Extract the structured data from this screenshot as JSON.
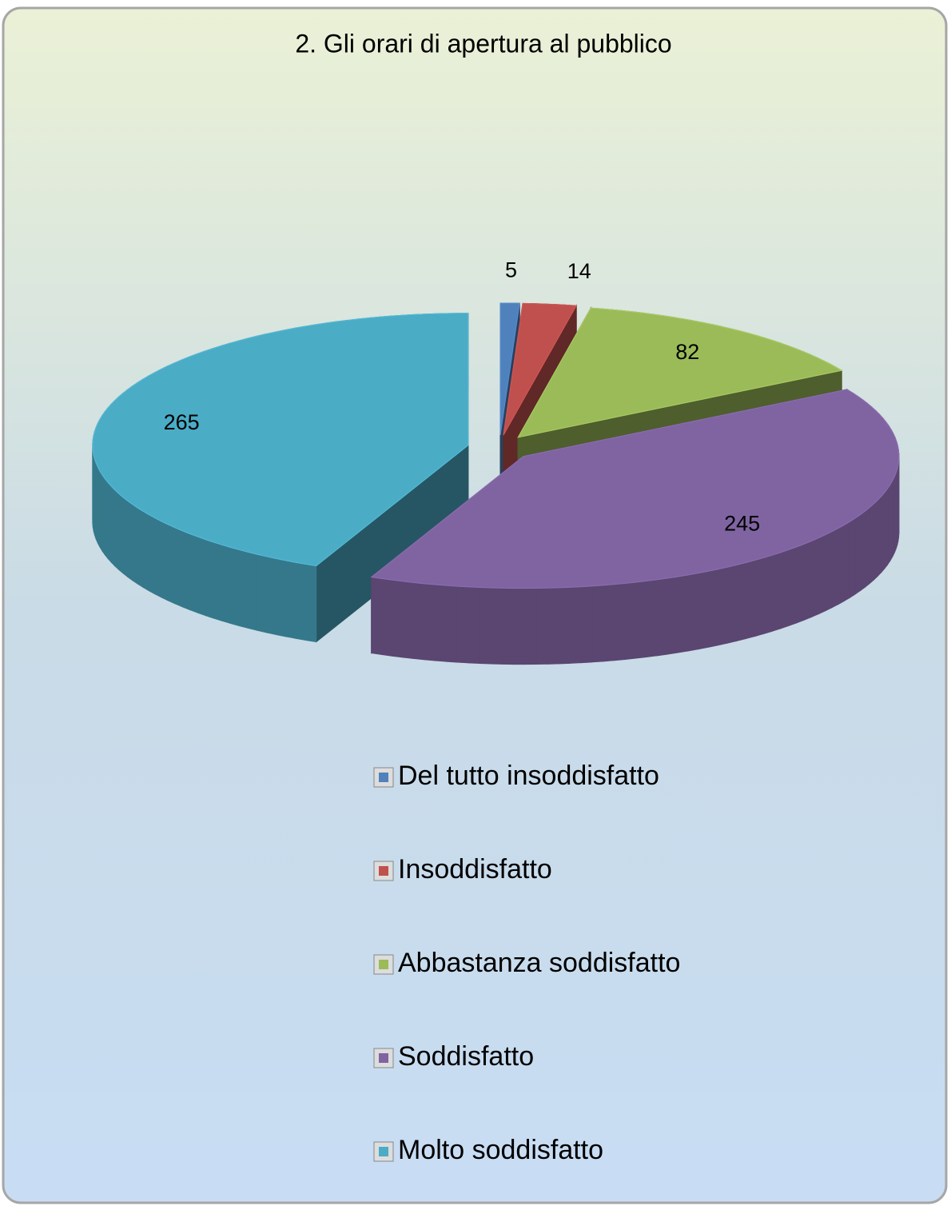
{
  "chart_data": {
    "type": "pie3d",
    "title": "2. Gli orari di apertura al pubblico",
    "categories": [
      "Del tutto insoddisfatto",
      "Insoddisfatto",
      "Abbastanza soddisfatto",
      "Soddisfatto",
      "Molto soddisfatto"
    ],
    "values": [
      5,
      14,
      82,
      245,
      265
    ],
    "colors": [
      "#4f81bd",
      "#c0504d",
      "#9bbb59",
      "#8064a2",
      "#4bacc6"
    ],
    "legend": "bottom"
  }
}
